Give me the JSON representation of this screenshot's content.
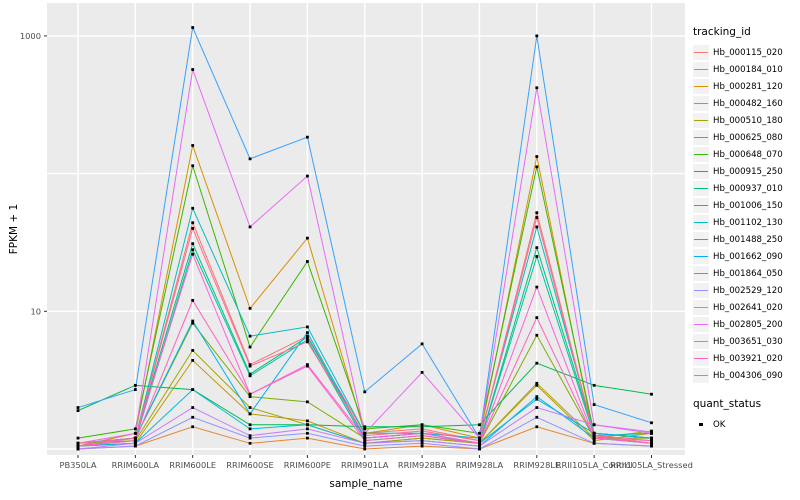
{
  "figure": {
    "y_axis_title": "FPKM + 1",
    "x_axis_title": "sample_name"
  },
  "legend": {
    "tracking_id_title": "tracking_id",
    "quant_status_title": "quant_status",
    "quant_status_items": [
      {
        "label": "OK"
      }
    ]
  },
  "colors": {
    "panel_bg": "#EBEBEB",
    "grid": "#FFFFFF",
    "tick_mark": "#333333",
    "tick_text": "#4D4D4D",
    "point": "#000000",
    "legend_key_bg": "#F2F2F2"
  },
  "chart_data": {
    "type": "line",
    "title": "",
    "xlabel": "sample_name",
    "ylabel": "FPKM + 1",
    "y_scale": "log10",
    "ylim": [
      1,
      1400
    ],
    "y_gridline_values": [
      1,
      10,
      100,
      1000
    ],
    "y_tick_labels": [
      {
        "label": "1000",
        "value": 1000
      },
      {
        "label": "10",
        "value": 10
      }
    ],
    "grid": true,
    "legend_position": "right",
    "point_shape": "square",
    "categories": [
      "PB350LA",
      "RRIM600LA",
      "RRIM600LE",
      "RRIM600SE",
      "RRIM600PE",
      "RRIM901LA",
      "RRIM928BA",
      "RRIM928LA",
      "RRIM928LE",
      "RRII105LA_Control",
      "RRII105LA_Stressed"
    ],
    "series": [
      {
        "name": "Hb_000115_020",
        "color": "#F8766D",
        "values": [
          1.1,
          1.2,
          44,
          4.1,
          6.6,
          1.3,
          1.4,
          1.15,
          52,
          1.25,
          1.1
        ]
      },
      {
        "name": "Hb_000184_010",
        "color": "#EA8331",
        "values": [
          1.0,
          1.05,
          1.45,
          1.1,
          1.2,
          1.0,
          1.05,
          1.0,
          1.45,
          1.1,
          1.05
        ]
      },
      {
        "name": "Hb_000281_120",
        "color": "#D89000",
        "values": [
          1.05,
          1.3,
          160,
          10.5,
          34,
          1.3,
          1.5,
          1.2,
          133,
          1.2,
          1.1
        ]
      },
      {
        "name": "Hb_000482_160",
        "color": "#C09B00",
        "values": [
          1.05,
          1.1,
          4.4,
          1.8,
          1.6,
          1.1,
          1.2,
          1.1,
          2.9,
          1.15,
          1.3
        ]
      },
      {
        "name": "Hb_000510_180",
        "color": "#A3A500",
        "values": [
          1.1,
          1.15,
          5.2,
          2.0,
          1.5,
          1.1,
          1.2,
          1.1,
          3.0,
          1.2,
          1.35
        ]
      },
      {
        "name": "Hb_000625_080",
        "color": "#7CAE00",
        "values": [
          1.05,
          1.2,
          8.2,
          2.4,
          2.2,
          1.2,
          1.3,
          1.1,
          6.7,
          1.2,
          1.2
        ]
      },
      {
        "name": "Hb_000648_070",
        "color": "#39B600",
        "values": [
          1.2,
          1.4,
          114,
          5.5,
          23,
          1.4,
          1.5,
          1.3,
          112,
          1.3,
          1.2
        ]
      },
      {
        "name": "Hb_000915_250",
        "color": "#00BB4E",
        "values": [
          1.9,
          2.9,
          2.7,
          1.5,
          1.5,
          1.45,
          1.45,
          1.5,
          4.2,
          2.9,
          2.5
        ]
      },
      {
        "name": "Hb_000937_010",
        "color": "#00BF7D",
        "values": [
          1.1,
          1.2,
          31,
          3.5,
          6.5,
          1.2,
          1.3,
          1.1,
          29,
          1.3,
          1.2
        ]
      },
      {
        "name": "Hb_001006_150",
        "color": "#00C1A3",
        "values": [
          1.05,
          1.15,
          28,
          3.4,
          6.2,
          1.15,
          1.25,
          1.1,
          25,
          1.25,
          1.3
        ]
      },
      {
        "name": "Hb_001102_130",
        "color": "#00BFC4",
        "values": [
          1.1,
          1.2,
          56,
          6.6,
          7.7,
          1.3,
          1.3,
          1.2,
          41,
          1.3,
          1.2
        ]
      },
      {
        "name": "Hb_001488_250",
        "color": "#00BAE0",
        "values": [
          1.05,
          1.1,
          2.7,
          1.4,
          1.5,
          1.1,
          1.15,
          1.05,
          2.4,
          1.2,
          1.1
        ]
      },
      {
        "name": "Hb_001662_090",
        "color": "#00B0F6",
        "values": [
          1.1,
          1.2,
          8.5,
          1.8,
          7.0,
          1.2,
          1.3,
          1.1,
          2.3,
          1.3,
          1.2
        ]
      },
      {
        "name": "Hb_001864_050",
        "color": "#35A2FF",
        "values": [
          2.0,
          2.7,
          1150,
          128,
          184,
          2.6,
          5.8,
          1.2,
          1000,
          2.1,
          1.55
        ]
      },
      {
        "name": "Hb_002529_120",
        "color": "#9590FF",
        "values": [
          1.0,
          1.05,
          1.7,
          1.2,
          1.3,
          1.05,
          1.1,
          1.0,
          1.7,
          1.1,
          1.05
        ]
      },
      {
        "name": "Hb_002641_020",
        "color": "#C77CFF",
        "values": [
          1.0,
          1.1,
          2.0,
          1.25,
          1.4,
          1.1,
          1.15,
          1.05,
          2.0,
          1.5,
          1.33
        ]
      },
      {
        "name": "Hb_002805_200",
        "color": "#E76BF3",
        "values": [
          1.1,
          1.3,
          570,
          41,
          96,
          1.3,
          3.6,
          1.2,
          420,
          1.5,
          1.3
        ]
      },
      {
        "name": "Hb_003651_030",
        "color": "#FA62DB",
        "values": [
          1.05,
          1.2,
          26,
          2.5,
          4.1,
          1.2,
          1.3,
          1.1,
          15,
          1.2,
          1.15
        ]
      },
      {
        "name": "Hb_003921_020",
        "color": "#FF62BC",
        "values": [
          1.05,
          1.15,
          12,
          2.5,
          4.0,
          1.15,
          1.25,
          1.1,
          9.0,
          1.2,
          1.1
        ]
      },
      {
        "name": "Hb_004306_090",
        "color": "#FF6A98",
        "values": [
          1.1,
          1.2,
          40,
          4.0,
          6.0,
          1.25,
          1.35,
          1.15,
          48,
          1.25,
          1.15
        ]
      }
    ]
  }
}
